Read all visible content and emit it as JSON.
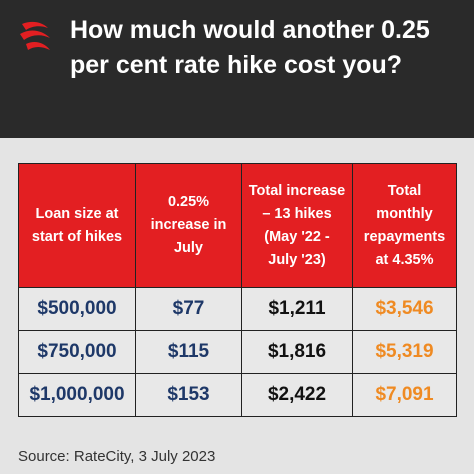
{
  "header": {
    "title": "How much would another 0.25 per cent rate hike cost you?"
  },
  "table": {
    "columns": [
      "Loan size at start of hikes",
      "0.25% increase in July",
      "Total increase – 13 hikes (May '22 - July '23)",
      "Total monthly repayments at 4.35%"
    ],
    "rows": [
      [
        "$500,000",
        "$77",
        "$1,211",
        "$3,546"
      ],
      [
        "$750,000",
        "$115",
        "$1,816",
        "$5,319"
      ],
      [
        "$1,000,000",
        "$153",
        "$2,422",
        "$7,091"
      ]
    ]
  },
  "source": "Source: RateCity, 3 July 2023"
}
